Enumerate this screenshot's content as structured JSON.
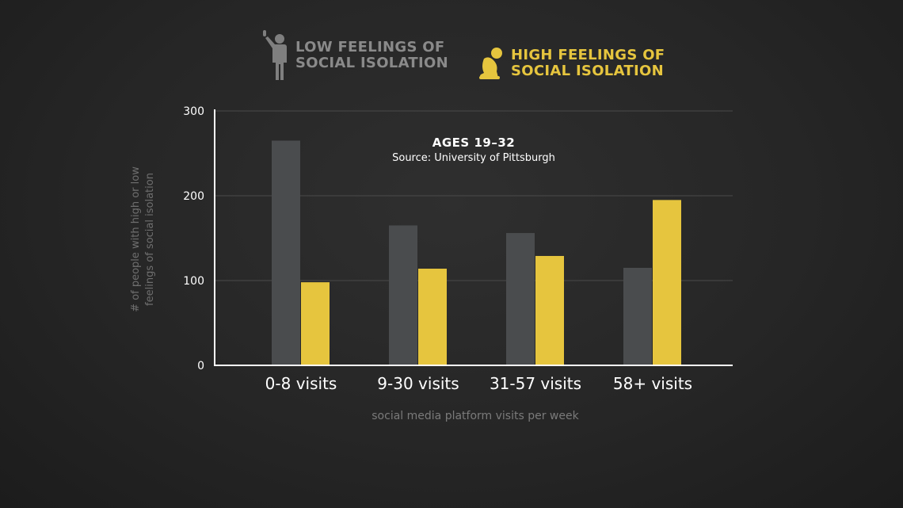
{
  "colors": {
    "background": "#262626",
    "low_series": "#4a4c4e",
    "high_series": "#e6c53e",
    "low_legend_text": "#8a8a8a",
    "axis": "#ffffff",
    "grid": "#4a4a4a",
    "tick_label": "#ffffff",
    "axis_title": "#6f6f6f",
    "x_title": "#7a7a7a"
  },
  "legend": {
    "low": {
      "icon": "standing-person-waving-icon",
      "line1": "LOW FEELINGS OF",
      "line2": "SOCIAL ISOLATION"
    },
    "high": {
      "icon": "crouching-person-icon",
      "line1": "HIGH FEELINGS OF",
      "line2": "SOCIAL ISOLATION"
    }
  },
  "chart_data": {
    "type": "bar",
    "title": "AGES 19–32",
    "subtitle": "Source: University of Pittsburgh",
    "xlabel": "social media platform visits per week",
    "ylabel_lines": [
      "# of people with high or low",
      "feelings of social isolation"
    ],
    "categories": [
      "0-8 visits",
      "9-30 visits",
      "31-57 visits",
      "58+ visits"
    ],
    "series": [
      {
        "name": "LOW FEELINGS OF SOCIAL ISOLATION",
        "values": [
          265,
          165,
          156,
          115
        ]
      },
      {
        "name": "HIGH FEELINGS OF SOCIAL ISOLATION",
        "values": [
          98,
          114,
          129,
          195
        ]
      }
    ],
    "yticks": [
      0,
      100,
      200,
      300
    ],
    "ylim": [
      0,
      300
    ],
    "grid": true,
    "legend_position": "top"
  }
}
